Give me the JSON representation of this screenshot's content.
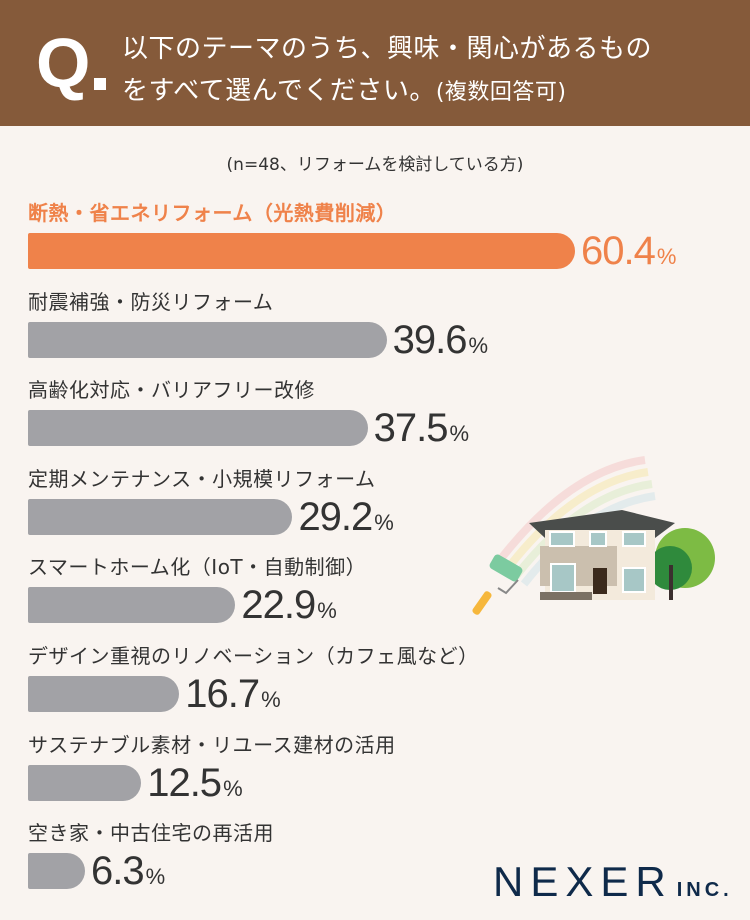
{
  "header": {
    "q_mark": "Q",
    "question_line1": "以下のテーマのうち、興味・関心があるもの",
    "question_line2": "をすべて選んでください。",
    "question_suffix": "(複数回答可)"
  },
  "note": "(n=48、リフォームを検討している方)",
  "chart_data": {
    "type": "bar",
    "orientation": "horizontal",
    "categories": [
      "断熱・省エネリフォーム（光熱費削減）",
      "耐震補強・防災リフォーム",
      "高齢化対応・バリアフリー改修",
      "定期メンテナンス・小規模リフォーム",
      "スマートホーム化（IoT・自動制御）",
      "デザイン重視のリノベーション（カフェ風など）",
      "サステナブル素材・リユース建材の活用",
      "空き家・中古住宅の再活用"
    ],
    "values": [
      60.4,
      39.6,
      37.5,
      29.2,
      22.9,
      16.7,
      12.5,
      6.3
    ],
    "value_labels": [
      "60.4",
      "39.6",
      "37.5",
      "29.2",
      "22.9",
      "16.7",
      "12.5",
      "6.3"
    ],
    "unit": "%",
    "highlight_index": 0,
    "colors": {
      "highlight": "#ef824a",
      "default": "#a2a2a6",
      "header": "#855a3a",
      "background": "#f9f4f0"
    }
  },
  "logo": {
    "main": "NEXER",
    "suffix": "INC."
  }
}
